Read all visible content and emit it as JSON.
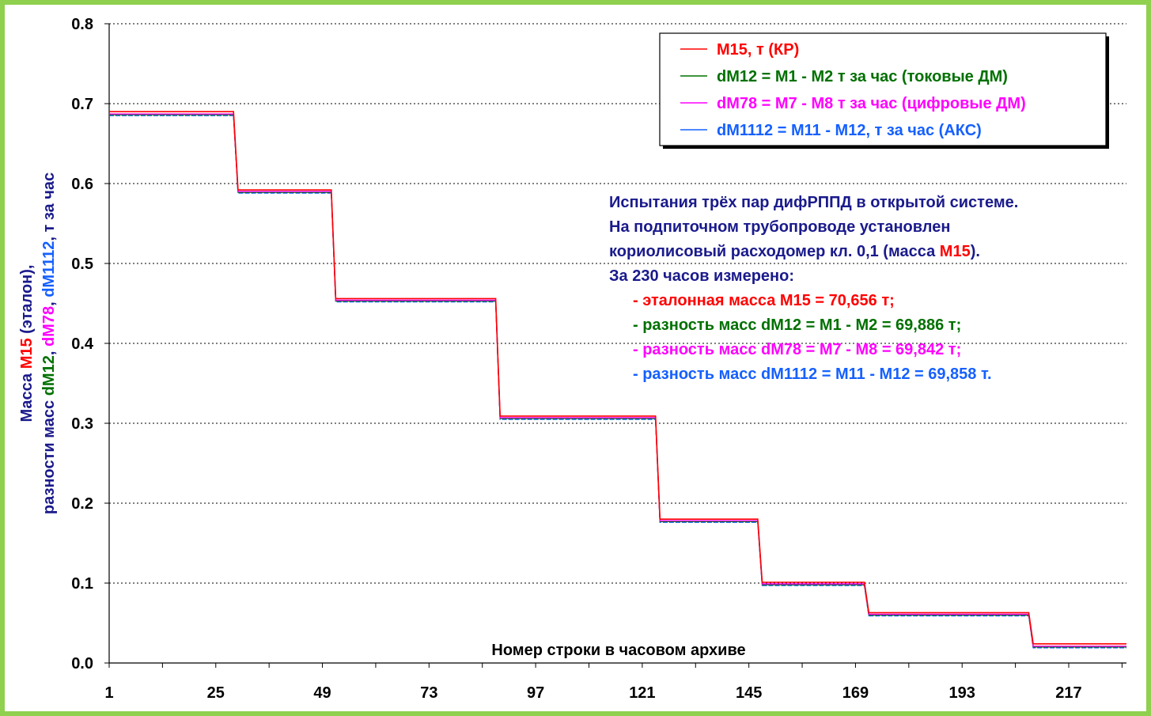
{
  "chart_data": {
    "type": "line",
    "xlabel": "Номер строки в часовом архиве",
    "ylabel_parts": [
      {
        "text": "Масса ",
        "color": "#1a1a8c"
      },
      {
        "text": "M15",
        "color": "#ff0000"
      },
      {
        "text": " (эталон),",
        "color": "#1a1a8c"
      },
      {
        "text": "разности масс ",
        "color": "#1a1a8c"
      },
      {
        "text": "dM12",
        "color": "#007000"
      },
      {
        "text": ", ",
        "color": "#1a1a8c"
      },
      {
        "text": "dM78",
        "color": "#ff00ff"
      },
      {
        "text": ", ",
        "color": "#1a1a8c"
      },
      {
        "text": "dM1112",
        "color": "#1560ff"
      },
      {
        "text": ", т за час",
        "color": "#1a1a8c"
      }
    ],
    "xlim": [
      1,
      230
    ],
    "ylim": [
      0,
      0.8
    ],
    "x_ticks": [
      "1",
      "25",
      "49",
      "73",
      "97",
      "121",
      "145",
      "169",
      "193",
      "217"
    ],
    "y_ticks": [
      "0.0",
      "0.1",
      "0.2",
      "0.3",
      "0.4",
      "0.5",
      "0.6",
      "0.7",
      "0.8"
    ],
    "grid": "horizontal dotted",
    "legend_position": "top-right",
    "steps": [
      {
        "x_start": 1,
        "x_end": 29,
        "m15": 0.69,
        "diff": 0.686
      },
      {
        "x_start": 30,
        "x_end": 51,
        "m15": 0.592,
        "diff": 0.589
      },
      {
        "x_start": 52,
        "x_end": 88,
        "m15": 0.456,
        "diff": 0.453
      },
      {
        "x_start": 89,
        "x_end": 124,
        "m15": 0.309,
        "diff": 0.306
      },
      {
        "x_start": 125,
        "x_end": 147,
        "m15": 0.18,
        "diff": 0.177
      },
      {
        "x_start": 148,
        "x_end": 171,
        "m15": 0.101,
        "diff": 0.098
      },
      {
        "x_start": 172,
        "x_end": 208,
        "m15": 0.063,
        "diff": 0.06
      },
      {
        "x_start": 209,
        "x_end": 230,
        "m15": 0.024,
        "diff": 0.02
      }
    ],
    "series": [
      {
        "name": "M15, т (КР)",
        "color": "#ff0000",
        "offset": 0.0
      },
      {
        "name": "dM12 = M1 - M2 т за час (токовые ДМ)",
        "color": "#007000",
        "offset": 0.0
      },
      {
        "name": "dM78 = M7 - M8 т за час (цифровые ДМ)",
        "color": "#ff00ff",
        "offset": 0.001
      },
      {
        "name": "dM1112 = M11 - M12, т за час (АКС)",
        "color": "#1560ff",
        "offset": -0.001
      }
    ]
  },
  "annotation": {
    "lines": [
      {
        "indent": 0,
        "parts": [
          {
            "text": "Испытания трёх пар дифРППД в открытой системе.",
            "color": "#1a1a8c"
          }
        ]
      },
      {
        "indent": 0,
        "parts": [
          {
            "text": "На подпиточном трубопроводе установлен",
            "color": "#1a1a8c"
          }
        ]
      },
      {
        "indent": 0,
        "parts": [
          {
            "text": "кориолисовый расходомер кл. 0,1 (масса ",
            "color": "#1a1a8c"
          },
          {
            "text": "M15",
            "color": "#ff0000"
          },
          {
            "text": ").",
            "color": "#1a1a8c"
          }
        ]
      },
      {
        "indent": 0,
        "parts": [
          {
            "text": "За 230 часов измерено:",
            "color": "#1a1a8c"
          }
        ]
      },
      {
        "indent": 1,
        "parts": [
          {
            "text": "- эталонная масса M15 = 70,656 т;",
            "color": "#ff0000"
          }
        ]
      },
      {
        "indent": 1,
        "parts": [
          {
            "text": "- разность масс dM12 = M1 - M2 = 69,886 т;",
            "color": "#007000"
          }
        ]
      },
      {
        "indent": 1,
        "parts": [
          {
            "text": "- разность масс dM78 = M7 - M8 = 69,842 т;",
            "color": "#ff00ff"
          }
        ]
      },
      {
        "indent": 1,
        "parts": [
          {
            "text": "- разность масс dM1112 = M11 - M12 = 69,858 т.",
            "color": "#1560ff"
          }
        ]
      }
    ]
  }
}
